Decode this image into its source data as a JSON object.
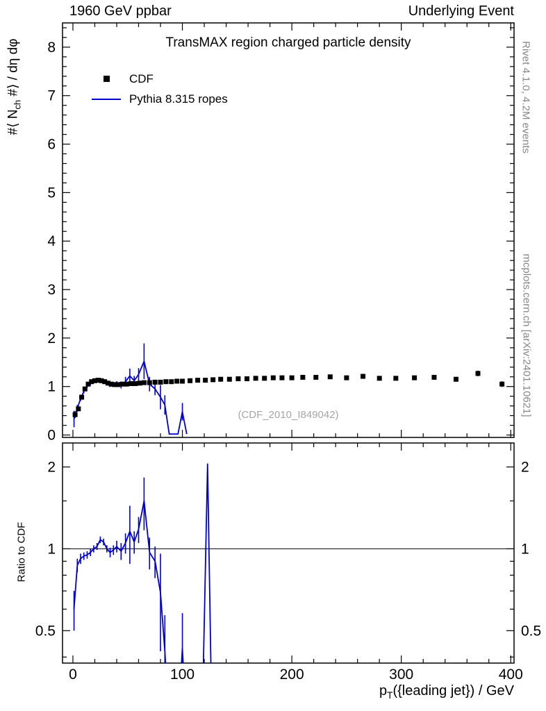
{
  "header": {
    "left": "1960 GeV ppbar",
    "right": "Underlying Event"
  },
  "watermark": "(CDF_2010_I849042)",
  "side": {
    "top": "Rivet 4.1.0,  4.2M events",
    "bottom": "mcplots.cern.ch [arXiv:2401.10621]"
  },
  "labels": {
    "y_main": {
      "pre": "#⟨ N",
      "sub": "ch",
      "post": " #⟩ / dη dφ"
    },
    "y_ratio": "Ratio to CDF",
    "x": {
      "pre": "p",
      "sub": "T",
      "post": "({leading jet}) / GeV"
    }
  },
  "legend": [
    {
      "label": "CDF",
      "marker": "square",
      "color": "#000000"
    },
    {
      "label": "Pythia 8.315 ropes",
      "marker": "line",
      "color": "#0000cd"
    }
  ],
  "chart_data": {
    "type": "line",
    "title": "TransMAX region charged particle density",
    "x": {
      "lim": [
        -9.5,
        403
      ],
      "major": [
        0,
        100,
        200,
        300,
        400
      ],
      "labels": [
        "0",
        "100",
        "200",
        "300",
        "400"
      ],
      "minor_step": 20,
      "label": "pT({leading jet}) / GeV"
    },
    "panels": {
      "main": {
        "ylabel": "#⟨ N_ch #⟩ / dη dφ",
        "yscale": "linear",
        "ylim": [
          -0.05,
          8.5
        ],
        "grid": false,
        "yticks": {
          "major": [
            0,
            1,
            2,
            3,
            4,
            5,
            6,
            7,
            8
          ],
          "labels": [
            "0",
            "1",
            "2",
            "3",
            "4",
            "5",
            "6",
            "7",
            "8"
          ],
          "minor_step": 0.2
        },
        "series": [
          {
            "name": "Pythia 8.315 ropes",
            "type": "line",
            "color": "#0000cd",
            "points": [
              [
                1,
                0.33,
                0.17
              ],
              [
                4,
                0.55,
                0.07
              ],
              [
                7,
                0.75,
                0.05
              ],
              [
                10,
                0.9,
                0.04
              ],
              [
                13,
                1.0,
                0.03
              ],
              [
                16,
                1.06,
                0.03
              ],
              [
                19,
                1.1,
                0.03
              ],
              [
                22,
                1.12,
                0.03
              ],
              [
                25,
                1.15,
                0.03
              ],
              [
                28,
                1.12,
                0.03
              ],
              [
                31,
                1.06,
                0.03
              ],
              [
                34,
                1.03,
                0.04
              ],
              [
                37,
                1.04,
                0.04
              ],
              [
                40,
                1.06,
                0.05
              ],
              [
                44,
                1.03,
                0.07
              ],
              [
                48,
                1.1,
                0.1
              ],
              [
                52,
                1.22,
                0.15
              ],
              [
                56,
                1.12,
                0.1
              ],
              [
                60,
                1.25,
                0.13
              ],
              [
                65,
                1.52,
                0.37
              ],
              [
                70,
                1.05,
                0.15
              ],
              [
                75,
                0.95,
                0.13
              ],
              [
                80,
                0.78,
                0.25
              ],
              [
                84,
                0.62,
                0.2
              ],
              [
                88,
                0.02,
                0
              ],
              [
                96,
                0.02,
                0
              ],
              [
                100,
                0.48,
                0.18
              ],
              [
                104,
                0.02,
                0
              ]
            ]
          },
          {
            "name": "CDF",
            "type": "scatter",
            "marker": "square",
            "color": "#000000",
            "points": [
              [
                2,
                0.42,
                0.07
              ],
              [
                5,
                0.54,
                0.04
              ],
              [
                8,
                0.78,
                0.03
              ],
              [
                11,
                0.95,
                0.03
              ],
              [
                14,
                1.05,
                0.02
              ],
              [
                17,
                1.1,
                0.02
              ],
              [
                20,
                1.12,
                0.02
              ],
              [
                23,
                1.13,
                0.02
              ],
              [
                26,
                1.12,
                0.02
              ],
              [
                29,
                1.1,
                0.02
              ],
              [
                32,
                1.07,
                0.02
              ],
              [
                35,
                1.05,
                0.02
              ],
              [
                38,
                1.04,
                0.02
              ],
              [
                41,
                1.04,
                0.02
              ],
              [
                45,
                1.05,
                0.02
              ],
              [
                49,
                1.05,
                0.02
              ],
              [
                53,
                1.06,
                0.02
              ],
              [
                57,
                1.06,
                0.02
              ],
              [
                61,
                1.07,
                0.02
              ],
              [
                65,
                1.08,
                0.02
              ],
              [
                70,
                1.08,
                0.02
              ],
              [
                75,
                1.09,
                0.02
              ],
              [
                80,
                1.09,
                0.02
              ],
              [
                85,
                1.1,
                0.02
              ],
              [
                90,
                1.1,
                0.02
              ],
              [
                95,
                1.11,
                0.02
              ],
              [
                100,
                1.11,
                0.02
              ],
              [
                107,
                1.12,
                0.02
              ],
              [
                114,
                1.13,
                0.02
              ],
              [
                121,
                1.13,
                0.02
              ],
              [
                128,
                1.14,
                0.02
              ],
              [
                135,
                1.15,
                0.02
              ],
              [
                143,
                1.15,
                0.02
              ],
              [
                151,
                1.16,
                0.02
              ],
              [
                159,
                1.16,
                0.02
              ],
              [
                167,
                1.17,
                0.02
              ],
              [
                175,
                1.17,
                0.02
              ],
              [
                183,
                1.18,
                0.02
              ],
              [
                191,
                1.18,
                0.02
              ],
              [
                200,
                1.18,
                0.02
              ],
              [
                210,
                1.19,
                0.03
              ],
              [
                222,
                1.19,
                0.03
              ],
              [
                235,
                1.2,
                0.03
              ],
              [
                250,
                1.18,
                0.03
              ],
              [
                265,
                1.21,
                0.03
              ],
              [
                280,
                1.17,
                0.03
              ],
              [
                295,
                1.17,
                0.03
              ],
              [
                312,
                1.18,
                0.04
              ],
              [
                330,
                1.19,
                0.04
              ],
              [
                350,
                1.15,
                0.05
              ],
              [
                370,
                1.27,
                0.06
              ],
              [
                392,
                1.05,
                0.06
              ]
            ]
          }
        ]
      },
      "ratio": {
        "ylabel": "Ratio to CDF",
        "yscale": "log",
        "ylim": [
          0.38,
          2.45
        ],
        "ylabels_right": true,
        "refline": 1,
        "yticks": {
          "major": [
            0.5,
            1,
            2
          ],
          "labels": [
            "0.5",
            "1",
            "2"
          ],
          "minor": [
            0.4,
            0.6,
            0.7,
            0.8,
            0.9,
            1.5
          ]
        },
        "series": [
          {
            "name": "Pythia 8.315 ropes / CDF",
            "type": "line",
            "color": "#0000cd",
            "points": [
              [
                1,
                0.6,
                0.1
              ],
              [
                4,
                0.87,
                0.05
              ],
              [
                7,
                0.92,
                0.04
              ],
              [
                10,
                0.94,
                0.03
              ],
              [
                13,
                0.95,
                0.03
              ],
              [
                16,
                0.97,
                0.03
              ],
              [
                19,
                1.0,
                0.03
              ],
              [
                22,
                1.02,
                0.03
              ],
              [
                25,
                1.08,
                0.03
              ],
              [
                28,
                1.06,
                0.03
              ],
              [
                31,
                1.0,
                0.03
              ],
              [
                34,
                0.97,
                0.04
              ],
              [
                37,
                0.99,
                0.04
              ],
              [
                40,
                1.02,
                0.05
              ],
              [
                44,
                0.98,
                0.07
              ],
              [
                48,
                1.05,
                0.09
              ],
              [
                52,
                1.16,
                0.28
              ],
              [
                56,
                1.06,
                0.1
              ],
              [
                60,
                1.18,
                0.13
              ],
              [
                65,
                1.5,
                0.33
              ],
              [
                70,
                0.97,
                0.13
              ],
              [
                75,
                0.9,
                0.12
              ],
              [
                80,
                0.69,
                0.27
              ],
              [
                84,
                0.42,
                0.15
              ],
              [
                88,
                0.22,
                0
              ],
              [
                96,
                0.22,
                0
              ],
              [
                100,
                0.43,
                0.15
              ],
              [
                104,
                0.22,
                0
              ],
              [
                118,
                0.22,
                0
              ],
              [
                123,
                2.05,
                0
              ],
              [
                127,
                0.22,
                0
              ]
            ]
          }
        ]
      }
    }
  }
}
